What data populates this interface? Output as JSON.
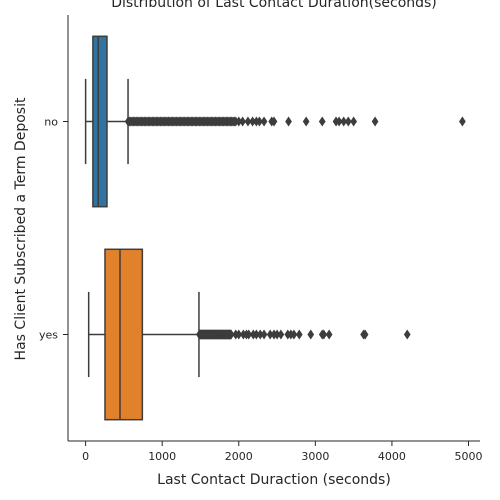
{
  "chart_data": {
    "type": "boxplot",
    "orientation": "horizontal",
    "title": "Distribution of Last Contact Duration(seconds)",
    "xlabel": "Last Contact Duraction (seconds)",
    "ylabel": "Has Client Subscribed a Term Deposit",
    "xlim": [
      -230,
      5150
    ],
    "xticks": [
      0,
      1000,
      2000,
      3000,
      4000,
      5000
    ],
    "categories": [
      "no",
      "yes"
    ],
    "series": [
      {
        "category": "no",
        "color": "#3274a1",
        "whisker_low": 0,
        "q1": 95,
        "median": 164,
        "q3": 279,
        "whisker_high": 554,
        "outliers_dense_range": [
          555,
          1960
        ],
        "outliers": [
          2000,
          2050,
          2120,
          2180,
          2230,
          2270,
          2330,
          2430,
          2460,
          2650,
          2880,
          3090,
          3270,
          3310,
          3370,
          3430,
          3500,
          3780,
          4920
        ]
      },
      {
        "category": "yes",
        "color": "#e1812c",
        "whisker_low": 40,
        "q1": 253,
        "median": 449,
        "q3": 741,
        "whisker_high": 1480,
        "outliers_dense_range": [
          1485,
          1900
        ],
        "outliers": [
          1960,
          2000,
          2060,
          2100,
          2130,
          2190,
          2230,
          2280,
          2330,
          2410,
          2460,
          2500,
          2550,
          2640,
          2680,
          2720,
          2790,
          2940,
          3090,
          3110,
          3180,
          3630,
          3650,
          4200
        ]
      }
    ],
    "grid": false,
    "legend": "none"
  }
}
